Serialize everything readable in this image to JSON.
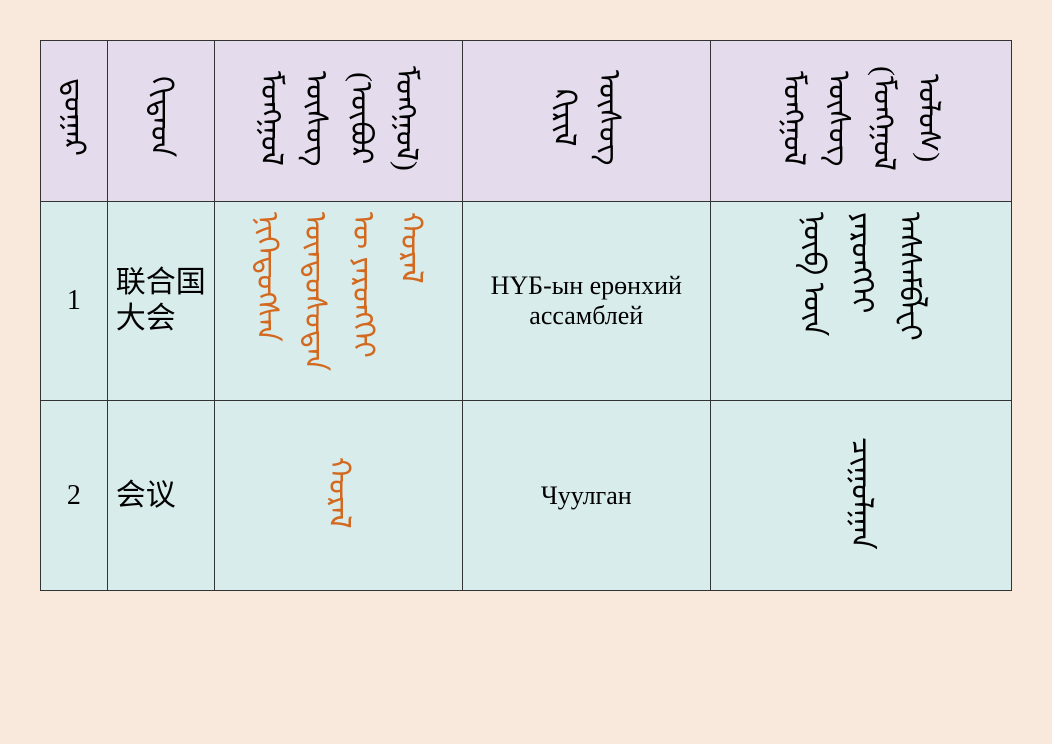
{
  "colors": {
    "page_bg": "#f9e8dc",
    "header_bg": "#e4dced",
    "body_bg": "#d9ecec",
    "border": "#333333",
    "highlight": "#d2691e",
    "text": "#000000"
  },
  "table": {
    "type": "table",
    "headers": {
      "col1": "ᠳ᠋ᠤᠭᠠᠷ",
      "col2": "ᠬᠢᠲᠠᠳ",
      "col3": "ᠮᠣᠩᠭᠣᠯ ᠦᠰᠦᠭ (ᠥᠪᠥᠷ ᠮᠣᠩᠭᠣᠯ)",
      "col4": "ᠺᠢᠷᠢᠯ ᠦᠰᠦᠭ",
      "col5": "ᠮᠣᠩᠭᠣᠯ ᠦᠰᠦᠭ (ᠮᠣᠩᠭᠣᠯ ᠤᠯᠤᠰ)"
    },
    "rows": [
      {
        "num": "1",
        "chinese": "联合国大会",
        "mongolian_inner": "ᠨᠢᠭᠡᠳᠦᠭᠰᠡᠨ ᠦᠨᠳᠦᠰᠦᠲᠡᠨ ᠦ ᠶᠡᠷᠦᠩᠬᠡᠢ ᠬᠤᠷᠠᠯ",
        "cyrillic": "НҮБ-ын ерөнхий ассамблей",
        "mongolian_outer": "ᠨᠦᠪ ᠦᠨ ᠶᠡᠷᠦᠩᠬᠡᠢ ᠠᠰᠰᠠᠮᠪᠯᠧᠢ"
      },
      {
        "num": "2",
        "chinese": "会议",
        "mongolian_inner": "ᠬᠤᠷᠠᠯ",
        "cyrillic": "Чуулган",
        "mongolian_outer": "ᠴᠢᠭᠤᠯᠭᠠᠨ"
      }
    ]
  }
}
